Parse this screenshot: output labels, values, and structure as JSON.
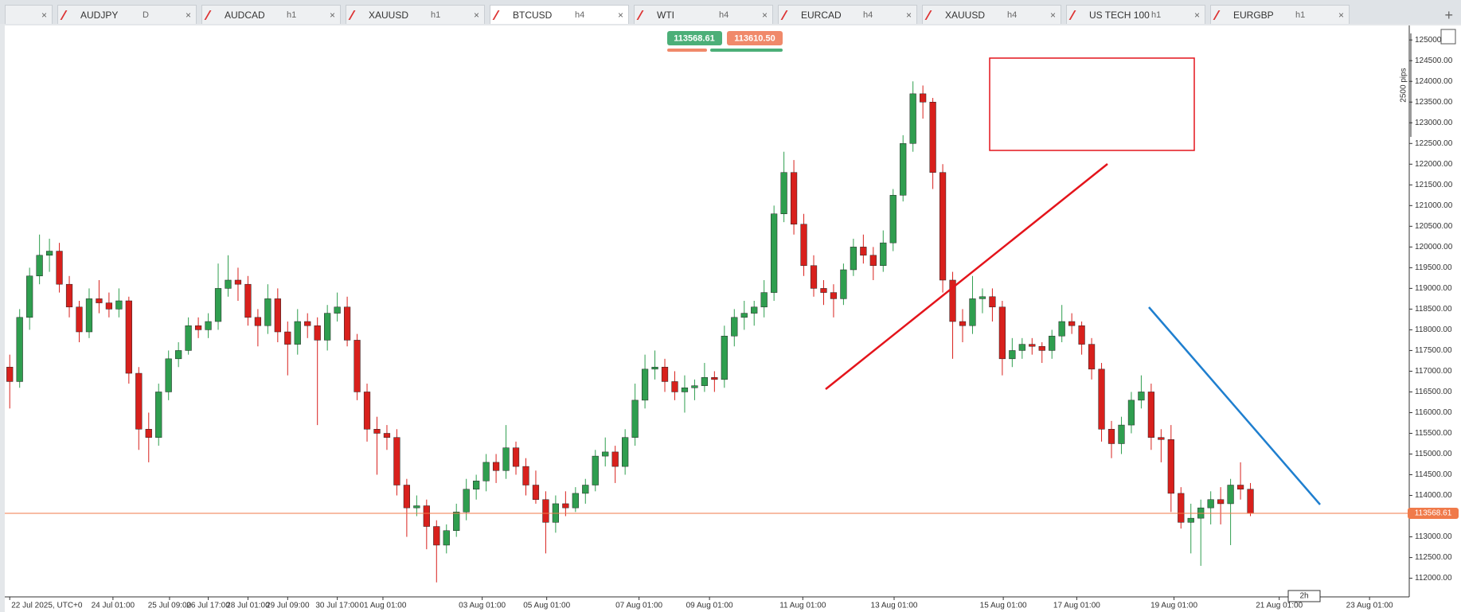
{
  "tabs": [
    {
      "name": "AUDJPY",
      "timeframe": "D"
    },
    {
      "name": "AUDCAD",
      "timeframe": "h1"
    },
    {
      "name": "XAUUSD",
      "timeframe": "h1"
    },
    {
      "name": "BTCUSD",
      "timeframe": "h4"
    },
    {
      "name": "WTI",
      "timeframe": "h4"
    },
    {
      "name": "EURCAD",
      "timeframe": "h4"
    },
    {
      "name": "XAUUSD",
      "timeframe": "h4"
    },
    {
      "name": "US TECH 100",
      "timeframe": "h1"
    },
    {
      "name": "EURGBP",
      "timeframe": "h1"
    }
  ],
  "sell_button": "113568.61",
  "buy_button": "113610.50",
  "period_label": "2h",
  "range_label": "2500 pips",
  "chart_data": {
    "type": "candlestick",
    "up_color": "#2f9e4f",
    "down_color": "#d8201c",
    "current_price": 113568.61,
    "current_price_label": "113568.61",
    "current_price_color": "#f07a4a",
    "ylim": [
      111550,
      125350
    ],
    "xlim": [
      -0.5,
      141
    ],
    "yticks": [
      {
        "value": 112000,
        "label": "112000.00"
      },
      {
        "value": 112500,
        "label": "112500.00"
      },
      {
        "value": 113000,
        "label": "113000.00"
      },
      {
        "value": 113500,
        "label": "113500.00"
      },
      {
        "value": 114000,
        "label": "114000.00"
      },
      {
        "value": 114500,
        "label": "114500.00"
      },
      {
        "value": 115000,
        "label": "115000.00"
      },
      {
        "value": 115500,
        "label": "115500.00"
      },
      {
        "value": 116000,
        "label": "116000.00"
      },
      {
        "value": 116500,
        "label": "116500.00"
      },
      {
        "value": 117000,
        "label": "117000.00"
      },
      {
        "value": 117500,
        "label": "117500.00"
      },
      {
        "value": 118000,
        "label": "118000.00"
      },
      {
        "value": 118500,
        "label": "118500.00"
      },
      {
        "value": 119000,
        "label": "119000.00"
      },
      {
        "value": 119500,
        "label": "119500.00"
      },
      {
        "value": 120000,
        "label": "120000.00"
      },
      {
        "value": 120500,
        "label": "120500.00"
      },
      {
        "value": 121000,
        "label": "121000.00"
      },
      {
        "value": 121500,
        "label": "121500.00"
      },
      {
        "value": 122000,
        "label": "122000.00"
      },
      {
        "value": 122500,
        "label": "122500.00"
      },
      {
        "value": 123000,
        "label": "123000.00"
      },
      {
        "value": 123500,
        "label": "123500.00"
      },
      {
        "value": 124000,
        "label": "124000.00"
      },
      {
        "value": 124500,
        "label": "124500.00"
      },
      {
        "value": 125000,
        "label": "125000.00"
      }
    ],
    "xticks": [
      {
        "value": 0,
        "label": "22 Jul 2025, UTC+0"
      },
      {
        "value": 10.4,
        "label": "24 Jul 01:00"
      },
      {
        "value": 16.1,
        "label": "25 Jul 09:00"
      },
      {
        "value": 20,
        "label": "26 Jul 17:00"
      },
      {
        "value": 24,
        "label": "28 Jul 01:00"
      },
      {
        "value": 28,
        "label": "29 Jul 09:00"
      },
      {
        "value": 33,
        "label": "30 Jul 17:00"
      },
      {
        "value": 37.6,
        "label": "01 Aug 01:00"
      },
      {
        "value": 47.6,
        "label": "03 Aug 01:00"
      },
      {
        "value": 54.1,
        "label": "05 Aug 01:00"
      },
      {
        "value": 63.4,
        "label": "07 Aug 01:00"
      },
      {
        "value": 70.5,
        "label": "09 Aug 01:00"
      },
      {
        "value": 79.9,
        "label": "11 Aug 01:00"
      },
      {
        "value": 89.1,
        "label": "13 Aug 01:00"
      },
      {
        "value": 100.1,
        "label": "15 Aug 01:00"
      },
      {
        "value": 107.5,
        "label": "17 Aug 01:00"
      },
      {
        "value": 117.3,
        "label": "19 Aug 01:00"
      },
      {
        "value": 127.9,
        "label": "21 Aug 01:00"
      },
      {
        "value": 137,
        "label": "23 Aug 01:00"
      }
    ],
    "candles": [
      [
        117100,
        117400,
        116100,
        116750
      ],
      [
        116750,
        118500,
        116600,
        118300
      ],
      [
        118300,
        119500,
        118000,
        119300
      ],
      [
        119300,
        120300,
        119100,
        119800
      ],
      [
        119800,
        120200,
        119400,
        119900
      ],
      [
        119900,
        120100,
        118900,
        119100
      ],
      [
        119100,
        119300,
        118300,
        118550
      ],
      [
        118550,
        118700,
        117700,
        117950
      ],
      [
        117950,
        119000,
        117800,
        118750
      ],
      [
        118750,
        119200,
        118400,
        118650
      ],
      [
        118650,
        118900,
        118300,
        118500
      ],
      [
        118500,
        119000,
        118300,
        118700
      ],
      [
        118700,
        118800,
        116700,
        116950
      ],
      [
        116950,
        117100,
        115100,
        115600
      ],
      [
        115600,
        116000,
        114800,
        115400
      ],
      [
        115400,
        116700,
        115200,
        116500
      ],
      [
        116500,
        117500,
        116300,
        117300
      ],
      [
        117300,
        117700,
        117100,
        117500
      ],
      [
        117500,
        118300,
        117400,
        118100
      ],
      [
        118100,
        118300,
        117800,
        118000
      ],
      [
        118000,
        118400,
        117800,
        118200
      ],
      [
        118200,
        119600,
        118000,
        119000
      ],
      [
        119000,
        119800,
        118800,
        119200
      ],
      [
        119200,
        119500,
        118700,
        119100
      ],
      [
        119100,
        119300,
        118100,
        118300
      ],
      [
        118300,
        118500,
        117600,
        118100
      ],
      [
        118100,
        119100,
        117900,
        118750
      ],
      [
        118750,
        119000,
        117700,
        117950
      ],
      [
        117950,
        118200,
        116900,
        117650
      ],
      [
        117650,
        118500,
        117400,
        118200
      ],
      [
        118200,
        118400,
        117800,
        118100
      ],
      [
        118100,
        118300,
        115700,
        117750
      ],
      [
        117750,
        118600,
        117500,
        118400
      ],
      [
        118400,
        118900,
        118200,
        118550
      ],
      [
        118550,
        118800,
        117600,
        117750
      ],
      [
        117750,
        117900,
        116300,
        116500
      ],
      [
        116500,
        116700,
        115300,
        115600
      ],
      [
        115600,
        115900,
        114500,
        115500
      ],
      [
        115500,
        115700,
        115100,
        115400
      ],
      [
        115400,
        115600,
        114000,
        114250
      ],
      [
        114250,
        114400,
        113000,
        113700
      ],
      [
        113700,
        114000,
        113500,
        113750
      ],
      [
        113750,
        113900,
        112700,
        113250
      ],
      [
        113250,
        113400,
        111900,
        112800
      ],
      [
        112800,
        113300,
        112600,
        113150
      ],
      [
        113150,
        113800,
        113000,
        113600
      ],
      [
        113600,
        114400,
        113400,
        114150
      ],
      [
        114150,
        114500,
        113900,
        114350
      ],
      [
        114350,
        115000,
        114100,
        114800
      ],
      [
        114800,
        115000,
        114300,
        114600
      ],
      [
        114600,
        115700,
        114400,
        115150
      ],
      [
        115150,
        115300,
        114500,
        114700
      ],
      [
        114700,
        114900,
        114000,
        114250
      ],
      [
        114250,
        114600,
        113800,
        113900
      ],
      [
        113900,
        114100,
        112600,
        113350
      ],
      [
        113350,
        114000,
        113100,
        113800
      ],
      [
        113800,
        114100,
        113500,
        113700
      ],
      [
        113700,
        114200,
        113600,
        114050
      ],
      [
        114050,
        114400,
        113800,
        114250
      ],
      [
        114250,
        115100,
        114100,
        114950
      ],
      [
        114950,
        115400,
        114700,
        115050
      ],
      [
        115050,
        115200,
        114300,
        114700
      ],
      [
        114700,
        115600,
        114500,
        115400
      ],
      [
        115400,
        116700,
        115200,
        116300
      ],
      [
        116300,
        117400,
        116100,
        117050
      ],
      [
        117050,
        117500,
        116800,
        117100
      ],
      [
        117100,
        117300,
        116500,
        116750
      ],
      [
        116750,
        117000,
        116300,
        116500
      ],
      [
        116500,
        116900,
        116000,
        116600
      ],
      [
        116600,
        116800,
        116300,
        116650
      ],
      [
        116650,
        117200,
        116500,
        116850
      ],
      [
        116850,
        117000,
        116500,
        116800
      ],
      [
        116800,
        118100,
        116600,
        117850
      ],
      [
        117850,
        118500,
        117600,
        118300
      ],
      [
        118300,
        118700,
        118000,
        118400
      ],
      [
        118400,
        118700,
        118100,
        118550
      ],
      [
        118550,
        119200,
        118300,
        118900
      ],
      [
        118900,
        121000,
        118700,
        120800
      ],
      [
        120800,
        122300,
        120600,
        121800
      ],
      [
        121800,
        122100,
        120300,
        120550
      ],
      [
        120550,
        120800,
        119300,
        119550
      ],
      [
        119550,
        119800,
        118800,
        119000
      ],
      [
        119000,
        119200,
        118600,
        118900
      ],
      [
        118900,
        119100,
        118300,
        118750
      ],
      [
        118750,
        119600,
        118600,
        119450
      ],
      [
        119450,
        120200,
        119300,
        120000
      ],
      [
        120000,
        120300,
        119600,
        119800
      ],
      [
        119800,
        120000,
        119200,
        119550
      ],
      [
        119550,
        120400,
        119400,
        120100
      ],
      [
        120100,
        121400,
        119900,
        121250
      ],
      [
        121250,
        122700,
        121100,
        122500
      ],
      [
        122500,
        124000,
        122300,
        123700
      ],
      [
        123700,
        123900,
        123100,
        123500
      ],
      [
        123500,
        123600,
        121400,
        121800
      ],
      [
        121800,
        122000,
        118900,
        119200
      ],
      [
        119200,
        119400,
        117300,
        118200
      ],
      [
        118200,
        118500,
        117700,
        118100
      ],
      [
        118100,
        119300,
        117900,
        118750
      ],
      [
        118750,
        119000,
        118400,
        118800
      ],
      [
        118800,
        119000,
        118200,
        118550
      ],
      [
        118550,
        118700,
        116900,
        117300
      ],
      [
        117300,
        117800,
        117100,
        117500
      ],
      [
        117500,
        117800,
        117300,
        117650
      ],
      [
        117650,
        117800,
        117400,
        117600
      ],
      [
        117600,
        117700,
        117200,
        117500
      ],
      [
        117500,
        118000,
        117300,
        117850
      ],
      [
        117850,
        118600,
        117700,
        118200
      ],
      [
        118200,
        118400,
        117900,
        118100
      ],
      [
        118100,
        118200,
        117400,
        117650
      ],
      [
        117650,
        117800,
        116800,
        117050
      ],
      [
        117050,
        117200,
        115300,
        115600
      ],
      [
        115600,
        115800,
        114900,
        115250
      ],
      [
        115250,
        115900,
        115000,
        115700
      ],
      [
        115700,
        116500,
        115500,
        116300
      ],
      [
        116300,
        116900,
        116100,
        116500
      ],
      [
        116500,
        116700,
        115100,
        115400
      ],
      [
        115400,
        115600,
        114800,
        115350
      ],
      [
        115350,
        115700,
        113600,
        114050
      ],
      [
        114050,
        114200,
        113200,
        113350
      ],
      [
        113350,
        113800,
        112600,
        113450
      ],
      [
        113450,
        113900,
        112300,
        113700
      ],
      [
        113700,
        114100,
        113300,
        113900
      ],
      [
        113900,
        114200,
        113300,
        113800
      ],
      [
        113800,
        114400,
        112800,
        114250
      ],
      [
        114250,
        114800,
        113900,
        114150
      ],
      [
        114150,
        114300,
        113500,
        113568.61
      ]
    ]
  }
}
